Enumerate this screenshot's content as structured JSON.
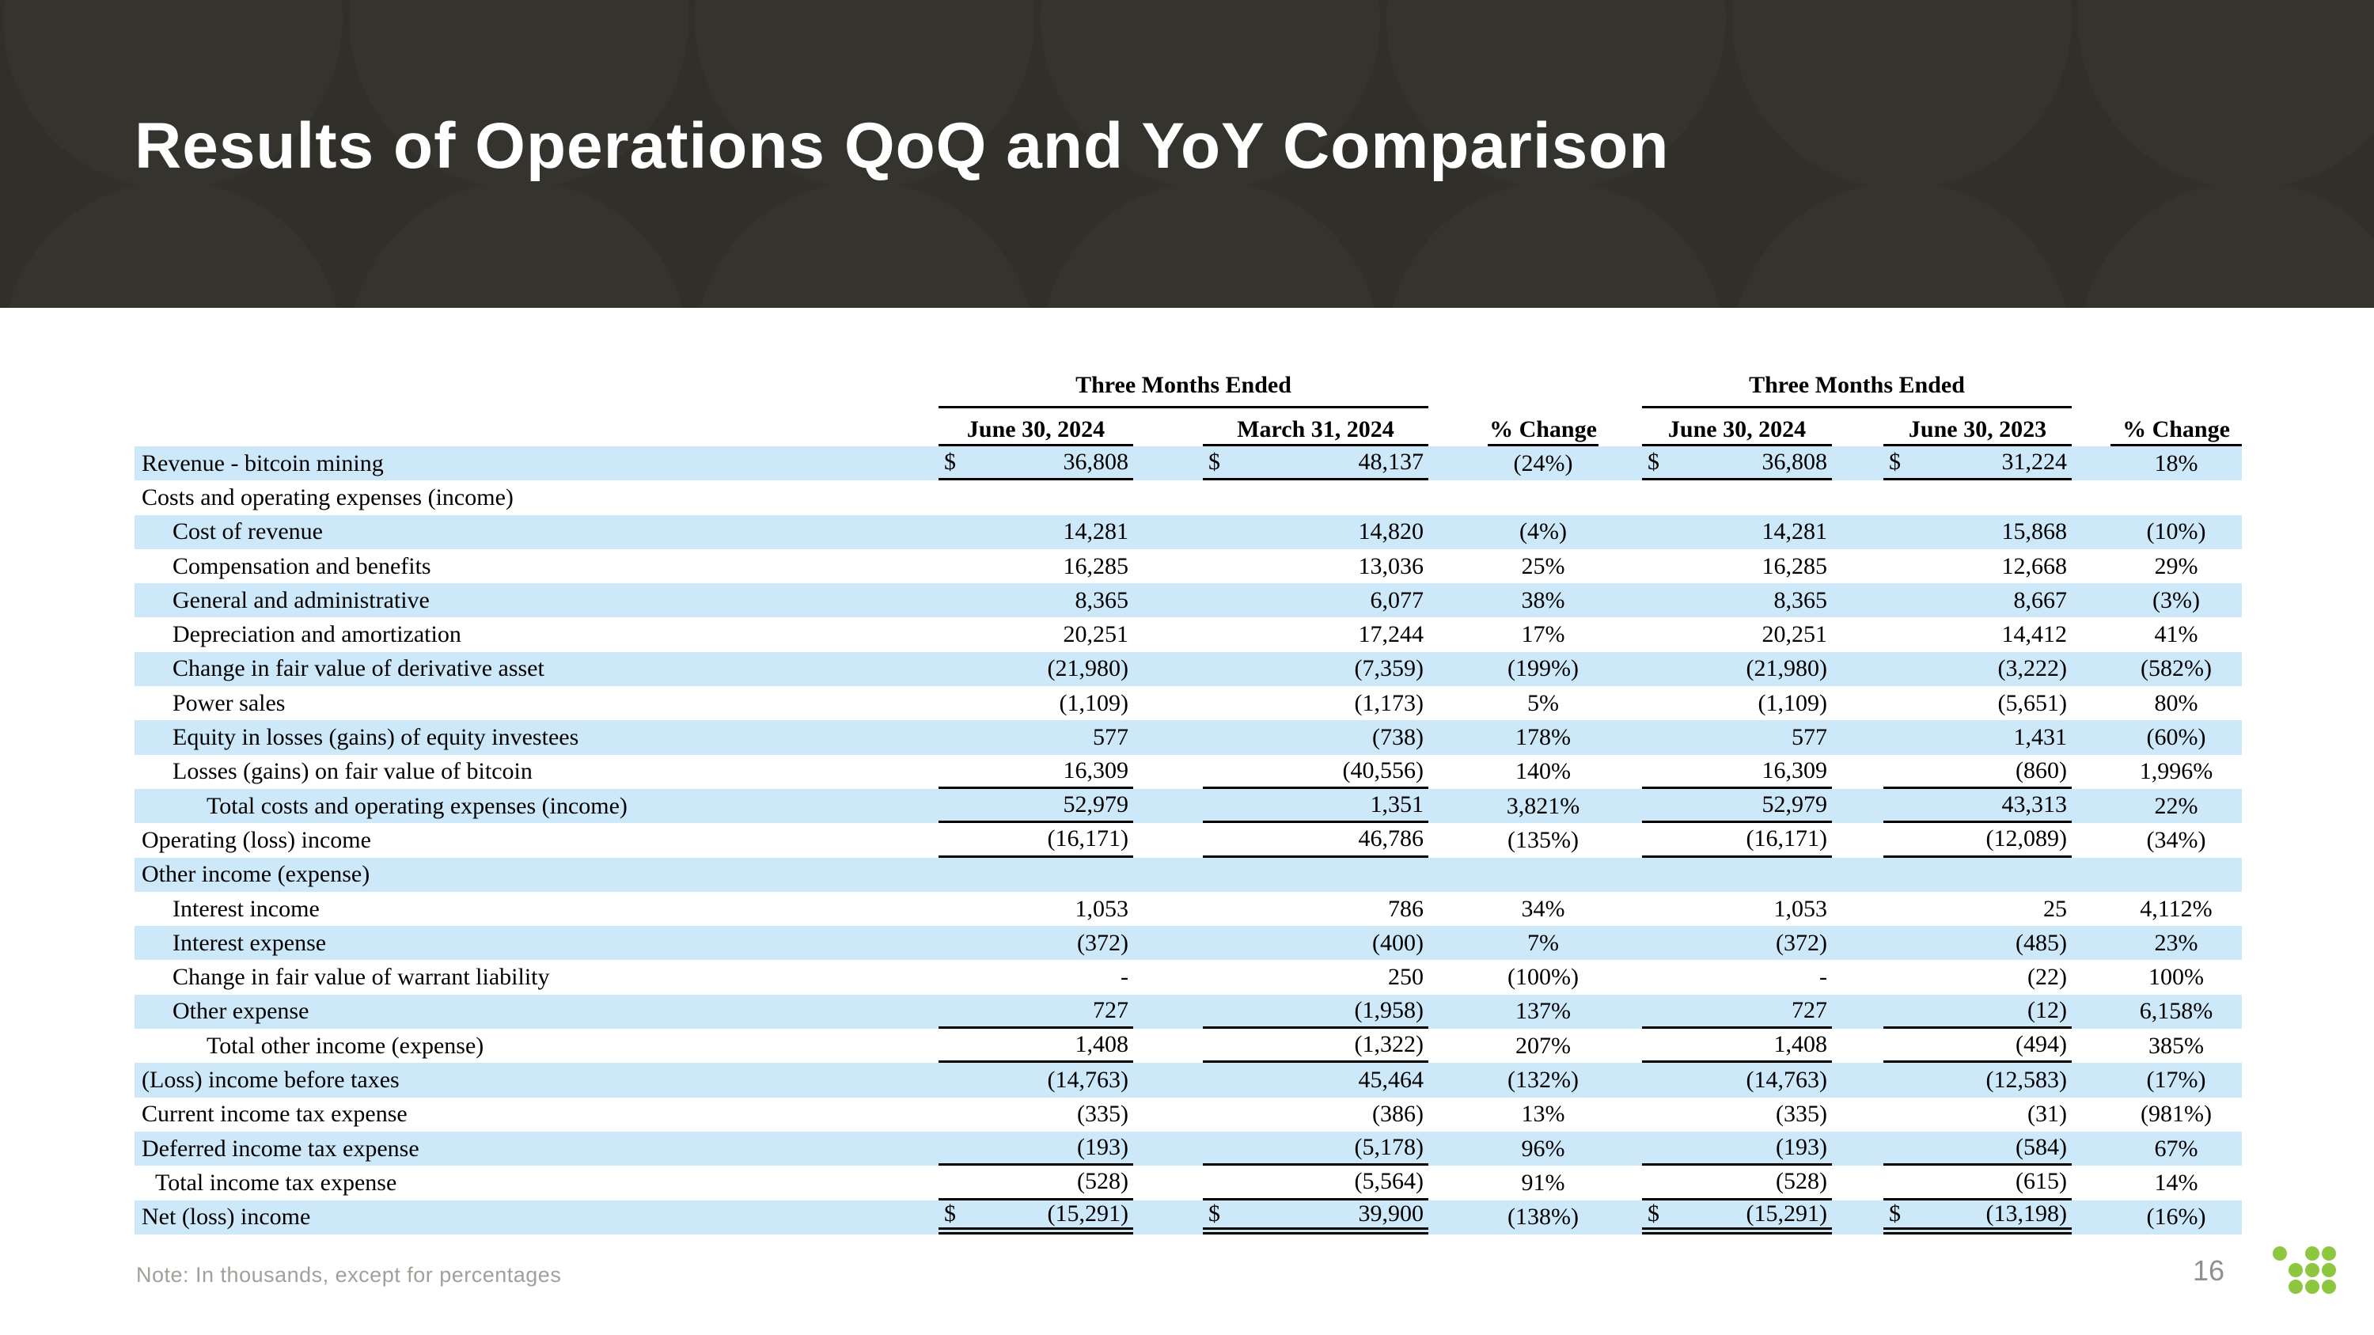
{
  "header": {
    "title": "Results of Operations QoQ and YoY Comparison"
  },
  "table": {
    "group_header": "Three Months Ended",
    "qoq_columns": [
      "June 30, 2024",
      "March 31, 2024",
      "% Change"
    ],
    "yoy_columns": [
      "June 30, 2024",
      "June 30, 2023",
      "% Change"
    ],
    "rows": [
      {
        "label": "Revenue - bitcoin mining",
        "indent": 0,
        "shade": "blue",
        "underline": "single",
        "dollar": true,
        "q1": "36,808",
        "q2": "48,137",
        "qp": "(24%)",
        "y1": "36,808",
        "y2": "31,224",
        "yp": "18%"
      },
      {
        "label": "Costs and operating expenses (income)",
        "indent": 0,
        "shade": "white",
        "underline": "none",
        "dollar": false,
        "q1": "",
        "q2": "",
        "qp": "",
        "y1": "",
        "y2": "",
        "yp": ""
      },
      {
        "label": "Cost of revenue",
        "indent": 1,
        "shade": "blue",
        "underline": "none",
        "dollar": false,
        "q1": "14,281",
        "q2": "14,820",
        "qp": "(4%)",
        "y1": "14,281",
        "y2": "15,868",
        "yp": "(10%)"
      },
      {
        "label": "Compensation and benefits",
        "indent": 1,
        "shade": "white",
        "underline": "none",
        "dollar": false,
        "q1": "16,285",
        "q2": "13,036",
        "qp": "25%",
        "y1": "16,285",
        "y2": "12,668",
        "yp": "29%"
      },
      {
        "label": "General and administrative",
        "indent": 1,
        "shade": "blue",
        "underline": "none",
        "dollar": false,
        "q1": "8,365",
        "q2": "6,077",
        "qp": "38%",
        "y1": "8,365",
        "y2": "8,667",
        "yp": "(3%)"
      },
      {
        "label": "Depreciation and amortization",
        "indent": 1,
        "shade": "white",
        "underline": "none",
        "dollar": false,
        "q1": "20,251",
        "q2": "17,244",
        "qp": "17%",
        "y1": "20,251",
        "y2": "14,412",
        "yp": "41%"
      },
      {
        "label": "Change in fair value of derivative asset",
        "indent": 1,
        "shade": "blue",
        "underline": "none",
        "dollar": false,
        "q1": "(21,980)",
        "q2": "(7,359)",
        "qp": "(199%)",
        "y1": "(21,980)",
        "y2": "(3,222)",
        "yp": "(582%)"
      },
      {
        "label": "Power sales",
        "indent": 1,
        "shade": "white",
        "underline": "none",
        "dollar": false,
        "q1": "(1,109)",
        "q2": "(1,173)",
        "qp": "5%",
        "y1": "(1,109)",
        "y2": "(5,651)",
        "yp": "80%"
      },
      {
        "label": "Equity in losses (gains) of equity investees",
        "indent": 1,
        "shade": "blue",
        "underline": "none",
        "dollar": false,
        "q1": "577",
        "q2": "(738)",
        "qp": "178%",
        "y1": "577",
        "y2": "1,431",
        "yp": "(60%)"
      },
      {
        "label": "Losses (gains) on fair value of bitcoin",
        "indent": 1,
        "shade": "white",
        "underline": "single",
        "dollar": false,
        "q1": "16,309",
        "q2": "(40,556)",
        "qp": "140%",
        "y1": "16,309",
        "y2": "(860)",
        "yp": "1,996%"
      },
      {
        "label": "Total costs and operating expenses (income)",
        "indent": 2,
        "shade": "blue",
        "underline": "single",
        "dollar": false,
        "q1": "52,979",
        "q2": "1,351",
        "qp": "3,821%",
        "y1": "52,979",
        "y2": "43,313",
        "yp": "22%"
      },
      {
        "label": "Operating (loss) income",
        "indent": 0,
        "shade": "white",
        "underline": "single",
        "dollar": false,
        "q1": "(16,171)",
        "q2": "46,786",
        "qp": "(135%)",
        "y1": "(16,171)",
        "y2": "(12,089)",
        "yp": "(34%)"
      },
      {
        "label": "Other income (expense)",
        "indent": 0,
        "shade": "blue",
        "underline": "none",
        "dollar": false,
        "q1": "",
        "q2": "",
        "qp": "",
        "y1": "",
        "y2": "",
        "yp": ""
      },
      {
        "label": "Interest income",
        "indent": 1,
        "shade": "white",
        "underline": "none",
        "dollar": false,
        "q1": "1,053",
        "q2": "786",
        "qp": "34%",
        "y1": "1,053",
        "y2": "25",
        "yp": "4,112%"
      },
      {
        "label": "Interest expense",
        "indent": 1,
        "shade": "blue",
        "underline": "none",
        "dollar": false,
        "q1": "(372)",
        "q2": "(400)",
        "qp": "7%",
        "y1": "(372)",
        "y2": "(485)",
        "yp": "23%"
      },
      {
        "label": "Change in fair value of warrant liability",
        "indent": 1,
        "shade": "white",
        "underline": "none",
        "dollar": false,
        "q1": "-",
        "q2": "250",
        "qp": "(100%)",
        "y1": "-",
        "y2": "(22)",
        "yp": "100%"
      },
      {
        "label": "Other expense",
        "indent": 1,
        "shade": "blue",
        "underline": "single",
        "dollar": false,
        "q1": "727",
        "q2": "(1,958)",
        "qp": "137%",
        "y1": "727",
        "y2": "(12)",
        "yp": "6,158%"
      },
      {
        "label": "Total other income (expense)",
        "indent": 2,
        "shade": "white",
        "underline": "single",
        "dollar": false,
        "q1": "1,408",
        "q2": "(1,322)",
        "qp": "207%",
        "y1": "1,408",
        "y2": "(494)",
        "yp": "385%"
      },
      {
        "label": "(Loss) income before taxes",
        "indent": 0,
        "shade": "blue",
        "underline": "none",
        "dollar": false,
        "q1": "(14,763)",
        "q2": "45,464",
        "qp": "(132%)",
        "y1": "(14,763)",
        "y2": "(12,583)",
        "yp": "(17%)"
      },
      {
        "label": "Current income tax expense",
        "indent": 0,
        "shade": "white",
        "underline": "none",
        "dollar": false,
        "q1": "(335)",
        "q2": "(386)",
        "qp": "13%",
        "y1": "(335)",
        "y2": "(31)",
        "yp": "(981%)"
      },
      {
        "label": "Deferred income tax expense",
        "indent": 0,
        "shade": "blue",
        "underline": "single",
        "dollar": false,
        "q1": "(193)",
        "q2": "(5,178)",
        "qp": "96%",
        "y1": "(193)",
        "y2": "(584)",
        "yp": "67%"
      },
      {
        "label": "Total income tax expense",
        "indent": 3,
        "shade": "white",
        "underline": "single",
        "dollar": false,
        "q1": "(528)",
        "q2": "(5,564)",
        "qp": "91%",
        "y1": "(528)",
        "y2": "(615)",
        "yp": "14%"
      },
      {
        "label": "Net (loss) income",
        "indent": 0,
        "shade": "blue",
        "underline": "double",
        "dollar": true,
        "q1": "(15,291)",
        "q2": "39,900",
        "qp": "(138%)",
        "y1": "(15,291)",
        "y2": "(13,198)",
        "yp": "(16%)"
      }
    ],
    "dollar_sign": "$"
  },
  "footer": {
    "note": "Note: In thousands, except for percentages",
    "page_number": "16"
  },
  "logo": {
    "name": "green-dot-grid-logo",
    "dot_color": "#8dc63f"
  },
  "colors": {
    "hero_background": "#312f2a",
    "hero_circle_pattern": "#35332d",
    "stripe_blue": "#cde8f9",
    "text_black": "#000000",
    "note_gray": "#9da29a",
    "page_gray": "#8d908d",
    "brand_green": "#8dc63f",
    "title_white": "#ffffff"
  }
}
